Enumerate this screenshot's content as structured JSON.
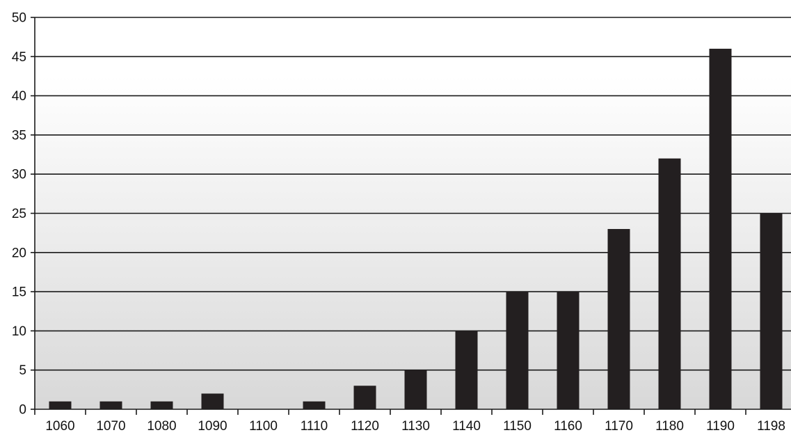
{
  "chart_data": {
    "type": "bar",
    "title": "",
    "xlabel": "",
    "ylabel": "",
    "categories": [
      "1060",
      "1070",
      "1080",
      "1090",
      "1100",
      "1110",
      "1120",
      "1130",
      "1140",
      "1150",
      "1160",
      "1170",
      "1180",
      "1190",
      "1198"
    ],
    "values": [
      1,
      1,
      1,
      2,
      0,
      1,
      3,
      5,
      10,
      15,
      15,
      23,
      32,
      46,
      25
    ],
    "ylim": [
      0,
      50
    ],
    "yticks": [
      "0",
      "5",
      "10",
      "15",
      "20",
      "25",
      "30",
      "35",
      "40",
      "45",
      "50"
    ],
    "grid": true,
    "legend": "none",
    "colors": {
      "bar": "#231f20",
      "gridline": "#1a1a1a",
      "plot_bg_top": "#ffffff",
      "plot_bg_bottom": "#d8d8d8"
    }
  }
}
